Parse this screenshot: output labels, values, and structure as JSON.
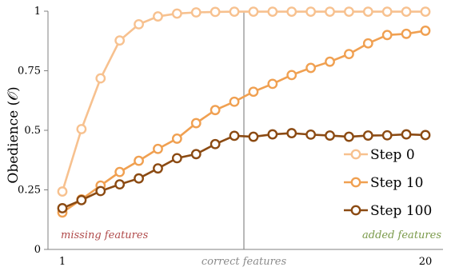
{
  "chart_data": {
    "type": "line",
    "title": "",
    "xlabel": "",
    "ylabel": "Obedience (𝒪)",
    "xlim": [
      1,
      20
    ],
    "ylim": [
      0,
      1
    ],
    "x_tick_labels": [
      "1",
      "20"
    ],
    "y_tick_labels": [
      "0",
      "0.25",
      "0.5",
      "0.75",
      "1"
    ],
    "grid": false,
    "legend_position": "lower-right",
    "x": [
      1,
      2,
      3,
      4,
      5,
      6,
      7,
      8,
      9,
      10,
      11,
      12,
      13,
      14,
      15,
      16,
      17,
      18,
      19,
      20
    ],
    "series": [
      {
        "name": "Step 0",
        "color": "#f7c18f",
        "values": [
          0.243,
          0.505,
          0.718,
          0.877,
          0.945,
          0.978,
          0.99,
          0.995,
          0.997,
          0.998,
          0.998,
          0.998,
          0.998,
          0.998,
          0.998,
          0.998,
          0.998,
          0.998,
          0.998,
          0.998
        ]
      },
      {
        "name": "Step 10",
        "color": "#f0a051",
        "values": [
          0.155,
          0.21,
          0.268,
          0.325,
          0.372,
          0.422,
          0.465,
          0.53,
          0.585,
          0.62,
          0.662,
          0.695,
          0.732,
          0.762,
          0.788,
          0.82,
          0.865,
          0.9,
          0.905,
          0.918
        ]
      },
      {
        "name": "Step 100",
        "color": "#8b4a12",
        "values": [
          0.173,
          0.207,
          0.245,
          0.273,
          0.298,
          0.34,
          0.383,
          0.4,
          0.442,
          0.477,
          0.473,
          0.483,
          0.488,
          0.482,
          0.478,
          0.473,
          0.478,
          0.479,
          0.483,
          0.48
        ]
      }
    ],
    "vertical_line": {
      "x": 10.5,
      "color": "#888888"
    },
    "annotations": [
      {
        "text": "missing features",
        "color": "#b04a4a",
        "position": "bottom-left"
      },
      {
        "text": "correct features",
        "color": "#8a8a8a",
        "position": "below-axis-center"
      },
      {
        "text": "added features",
        "color": "#7a9a4a",
        "position": "bottom-right"
      }
    ]
  }
}
